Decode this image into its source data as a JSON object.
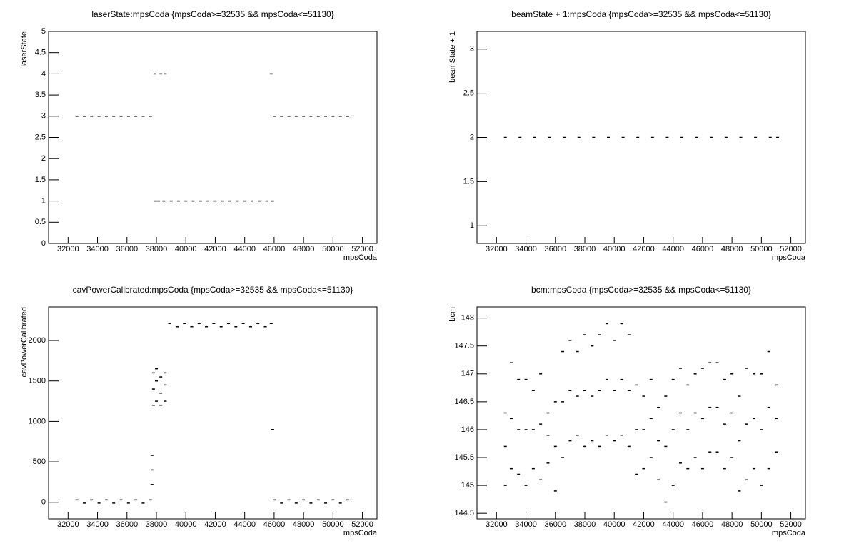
{
  "chart_data": [
    {
      "type": "scatter",
      "title": "laserState:mpsCoda {mpsCoda>=32535 && mpsCoda<=51130}",
      "x_label": "mpsCoda",
      "y_label": "laserState",
      "color": "#000000",
      "x": [
        32600,
        33100,
        33600,
        34100,
        34600,
        35100,
        35600,
        36100,
        36600,
        37100,
        37600,
        37900,
        38300,
        38600,
        45800,
        37950,
        38150,
        38500,
        39000,
        39500,
        40000,
        40500,
        41000,
        41500,
        42000,
        42500,
        43000,
        43500,
        44000,
        44500,
        45000,
        45500,
        45900,
        46000,
        46500,
        47000,
        47500,
        48000,
        48500,
        49000,
        49500,
        50000,
        50500,
        51000
      ],
      "values": [
        3,
        3,
        3,
        3,
        3,
        3,
        3,
        3,
        3,
        3,
        3,
        4,
        4,
        4,
        4,
        1,
        1,
        1,
        1,
        1,
        1,
        1,
        1,
        1,
        1,
        1,
        1,
        1,
        1,
        1,
        1,
        1,
        1,
        3,
        3,
        3,
        3,
        3,
        3,
        3,
        3,
        3,
        3,
        3
      ],
      "xlim": [
        30675,
        52990
      ],
      "xticks": [
        32000,
        34000,
        36000,
        38000,
        40000,
        42000,
        44000,
        46000,
        48000,
        50000,
        52000
      ],
      "ylim": [
        0,
        5
      ],
      "yticks": [
        0,
        0.5,
        1,
        1.5,
        2,
        2.5,
        3,
        3.5,
        4,
        4.5,
        5
      ]
    },
    {
      "type": "scatter",
      "title": "beamState + 1:mpsCoda {mpsCoda>=32535 && mpsCoda<=51130}",
      "x_label": "mpsCoda",
      "y_label": "beamState + 1",
      "color": "#000000",
      "x": [
        32600,
        33600,
        34600,
        35600,
        36600,
        37600,
        38600,
        39600,
        40600,
        41600,
        42600,
        43600,
        44600,
        45600,
        46600,
        47600,
        48600,
        49600,
        50600,
        51100
      ],
      "values": [
        2,
        2,
        2,
        2,
        2,
        2,
        2,
        2,
        2,
        2,
        2,
        2,
        2,
        2,
        2,
        2,
        2,
        2,
        2,
        2
      ],
      "xlim": [
        30675,
        52990
      ],
      "xticks": [
        32000,
        34000,
        36000,
        38000,
        40000,
        42000,
        44000,
        46000,
        48000,
        50000,
        52000
      ],
      "ylim": [
        0.8,
        3.2
      ],
      "yticks": [
        1,
        1.5,
        2,
        2.5,
        3
      ]
    },
    {
      "type": "scatter",
      "title": "cavPowerCalibrated:mpsCoda {mpsCoda>=32535 && mpsCoda<=51130}",
      "x_label": "mpsCoda",
      "y_label": "cavPowerCalibrated",
      "color": "#000000",
      "x": [
        32600,
        33100,
        33600,
        34100,
        34600,
        35100,
        35600,
        36100,
        36600,
        37100,
        37600,
        37700,
        37700,
        37700,
        37800,
        37800,
        37800,
        38000,
        38000,
        38000,
        38300,
        38300,
        38300,
        38600,
        38600,
        38600,
        38900,
        39400,
        39900,
        40400,
        40900,
        41400,
        41900,
        42400,
        42900,
        43400,
        43900,
        44400,
        44900,
        45400,
        45800,
        45900,
        46000,
        46500,
        47000,
        47500,
        48000,
        48500,
        49000,
        49500,
        50000,
        50500,
        51000
      ],
      "values": [
        30,
        -10,
        30,
        -10,
        30,
        -10,
        30,
        -10,
        30,
        -10,
        30,
        220,
        400,
        580,
        1200,
        1400,
        1600,
        1250,
        1500,
        1650,
        1200,
        1350,
        1550,
        1250,
        1450,
        1600,
        2210,
        2170,
        2210,
        2170,
        2210,
        2170,
        2210,
        2170,
        2210,
        2170,
        2210,
        2170,
        2210,
        2170,
        2210,
        900,
        30,
        -10,
        30,
        -10,
        30,
        -10,
        30,
        -10,
        30,
        -10,
        30
      ],
      "xlim": [
        30675,
        52990
      ],
      "xticks": [
        32000,
        34000,
        36000,
        38000,
        40000,
        42000,
        44000,
        46000,
        48000,
        50000,
        52000
      ],
      "ylim": [
        -205,
        2415
      ],
      "yticks": [
        0,
        500,
        1000,
        1500,
        2000
      ]
    },
    {
      "type": "scatter",
      "title": "bcm:mpsCoda {mpsCoda>=32535 && mpsCoda<=51130}",
      "x_label": "mpsCoda",
      "y_label": "bcm",
      "color": "#000000",
      "x": [
        32600,
        32600,
        32600,
        33000,
        33000,
        33000,
        33500,
        33500,
        33500,
        34000,
        34000,
        34000,
        34500,
        34500,
        34500,
        35000,
        35000,
        35000,
        35500,
        35500,
        35500,
        36000,
        36000,
        36000,
        36500,
        36500,
        36500,
        37000,
        37000,
        37000,
        37500,
        37500,
        37500,
        38000,
        38000,
        38000,
        38500,
        38500,
        38500,
        39000,
        39000,
        39000,
        39500,
        39500,
        39500,
        40000,
        40000,
        40000,
        40500,
        40500,
        40500,
        41000,
        41000,
        41000,
        41500,
        41500,
        41500,
        42000,
        42000,
        42000,
        42500,
        42500,
        42500,
        43000,
        43000,
        43000,
        43500,
        43500,
        43500,
        44000,
        44000,
        44000,
        44500,
        44500,
        44500,
        45000,
        45000,
        45000,
        45500,
        45500,
        45500,
        46000,
        46000,
        46000,
        46500,
        46500,
        46500,
        47000,
        47000,
        47000,
        47500,
        47500,
        47500,
        48000,
        48000,
        48000,
        48500,
        48500,
        48500,
        49000,
        49000,
        49000,
        49500,
        49500,
        49500,
        50000,
        50000,
        50000,
        50500,
        50500,
        50500,
        51000,
        51000,
        51000
      ],
      "values": [
        145.0,
        145.7,
        146.3,
        145.3,
        146.2,
        147.2,
        145.2,
        146.0,
        146.9,
        145.0,
        146.0,
        146.9,
        145.3,
        146.0,
        146.7,
        145.1,
        146.1,
        147.0,
        145.4,
        145.9,
        146.3,
        144.9,
        145.7,
        146.5,
        145.5,
        146.5,
        147.4,
        145.8,
        146.7,
        147.6,
        145.9,
        146.6,
        147.4,
        145.7,
        146.7,
        147.7,
        145.8,
        146.6,
        147.5,
        145.7,
        146.7,
        147.7,
        145.9,
        146.9,
        147.9,
        145.8,
        146.7,
        147.6,
        145.9,
        146.9,
        147.9,
        145.7,
        146.7,
        147.7,
        145.2,
        146.0,
        146.8,
        145.3,
        146.0,
        146.6,
        145.5,
        146.2,
        146.9,
        145.1,
        145.8,
        146.4,
        144.7,
        145.7,
        146.6,
        145.0,
        146.0,
        146.9,
        145.4,
        146.3,
        147.1,
        145.3,
        146.0,
        146.8,
        145.5,
        146.3,
        147.0,
        145.3,
        146.2,
        147.1,
        145.6,
        146.4,
        147.2,
        145.6,
        146.4,
        147.2,
        145.3,
        146.1,
        146.9,
        145.5,
        146.3,
        147.0,
        144.9,
        145.8,
        146.6,
        145.1,
        146.1,
        147.1,
        145.3,
        146.2,
        147.0,
        145.0,
        146.0,
        147.0,
        145.3,
        146.4,
        147.4,
        145.6,
        146.2,
        146.8
      ],
      "xlim": [
        30675,
        52990
      ],
      "xticks": [
        32000,
        34000,
        36000,
        38000,
        40000,
        42000,
        44000,
        46000,
        48000,
        50000,
        52000
      ],
      "ylim": [
        144.4,
        148.2
      ],
      "yticks": [
        144.5,
        145,
        145.5,
        146,
        146.5,
        147,
        147.5,
        148
      ]
    }
  ]
}
